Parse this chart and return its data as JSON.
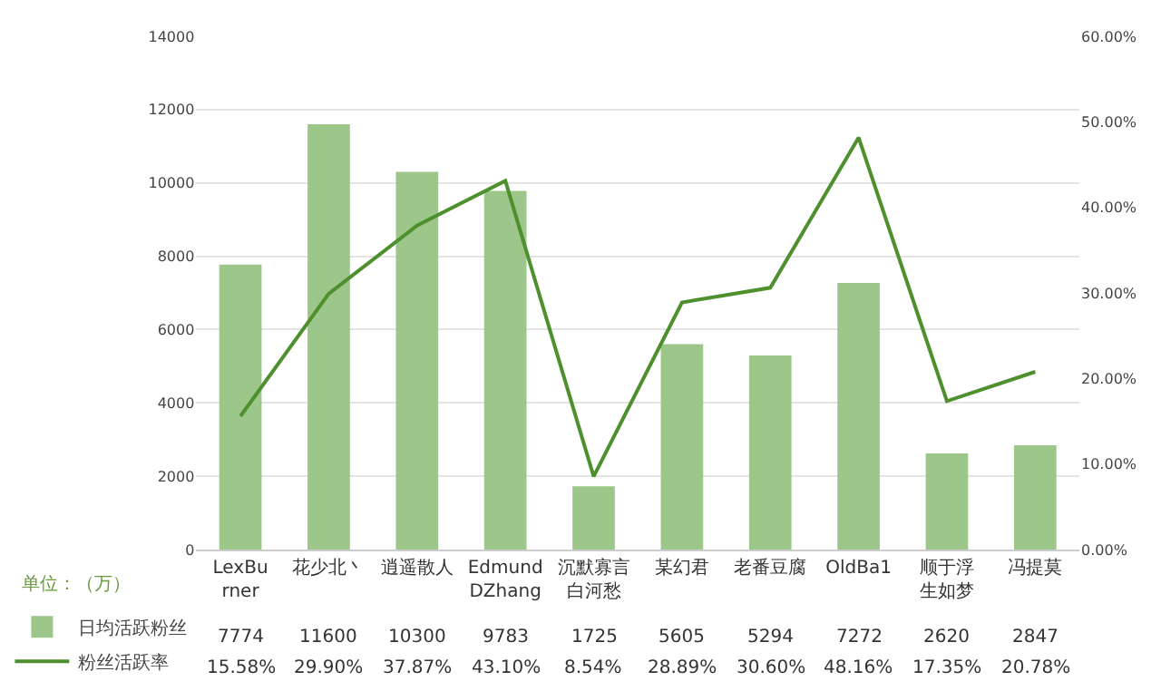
{
  "chart_data": {
    "type": "bar",
    "categories": [
      "LexBurner",
      "花少北丶",
      "逍遥散人",
      "EdmundDZhang",
      "沉默寡言白河愁",
      "某幻君",
      "老番豆腐",
      "OldBa1",
      "顺于浮生如梦",
      "冯提莫"
    ],
    "series": [
      {
        "name": "日均活跃粉丝",
        "color": "#9dc78a",
        "values": [
          7774,
          11600,
          10300,
          9783,
          1725,
          5605,
          5294,
          7272,
          2620,
          2847
        ],
        "value_labels": [
          "7774",
          "11600",
          "10300",
          "9783",
          "1725",
          "5605",
          "5294",
          "7272",
          "2620",
          "2847"
        ]
      },
      {
        "name": "粉丝活跃率",
        "type": "line",
        "axis": "y2",
        "color": "#4e8f2e",
        "values": [
          15.58,
          29.9,
          37.87,
          43.1,
          8.54,
          28.89,
          30.6,
          48.16,
          17.35,
          20.78
        ],
        "value_labels": [
          "15.58%",
          "29.90%",
          "37.87%",
          "43.10%",
          "8.54%",
          "28.89%",
          "30.60%",
          "48.16%",
          "17.35%",
          "20.78%"
        ]
      }
    ],
    "ylim": [
      0,
      14000
    ],
    "yticks": [
      0,
      2000,
      4000,
      6000,
      8000,
      10000,
      12000,
      14000
    ],
    "y2lim": [
      0,
      60
    ],
    "y2ticks": [
      {
        "value": 0,
        "label": "0.00%"
      },
      {
        "value": 10,
        "label": "10.00%"
      },
      {
        "value": 20,
        "label": "20.00%"
      },
      {
        "value": 30,
        "label": "30.00%"
      },
      {
        "value": 40,
        "label": "40.00%"
      },
      {
        "value": 50,
        "label": "50.00%"
      },
      {
        "value": 60,
        "label": "60.00%"
      }
    ],
    "grid": "y",
    "legend": "bottom left",
    "marker": "none",
    "annotations": [
      "单位：（万）"
    ]
  }
}
